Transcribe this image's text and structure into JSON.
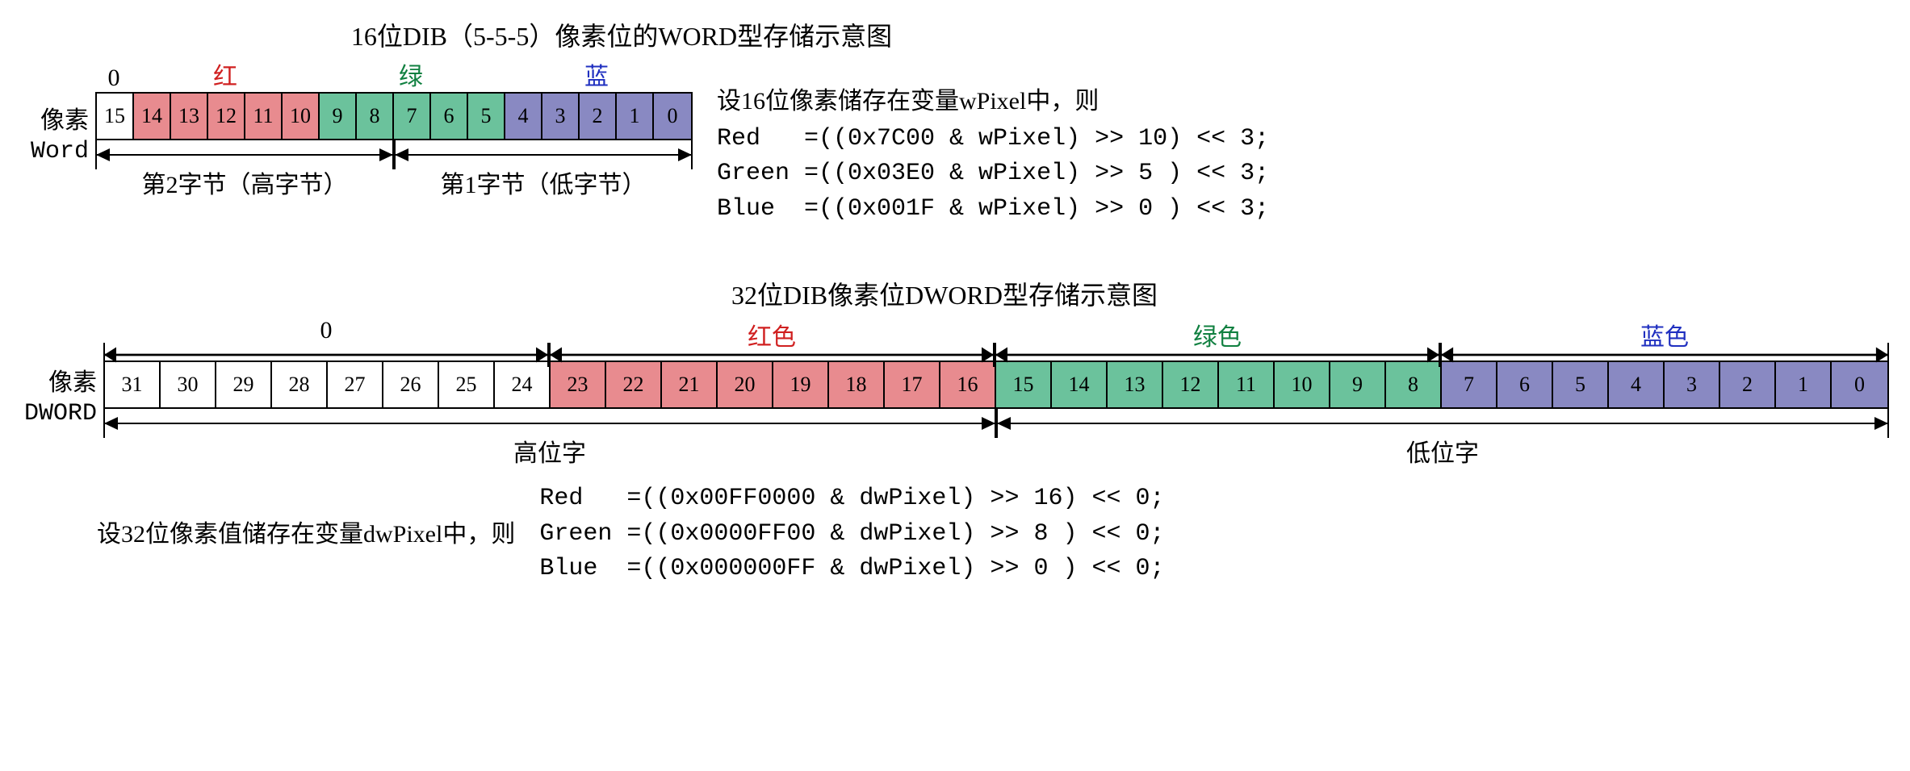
{
  "colors": {
    "red": "#e88b8f",
    "green": "#6bc29c",
    "blue": "#8989c2",
    "white": "#ffffff",
    "text_red": "#d02020",
    "text_green": "#108040",
    "text_blue": "#2030c0",
    "border": "#000000"
  },
  "fig16": {
    "title": "16位DIB（5-5-5）像素位的WORD型存储示意图",
    "row_label_l1": "像素",
    "row_label_l2": "Word",
    "channels": {
      "zero": "0",
      "red": "红",
      "green": "绿",
      "blue": "蓝"
    },
    "bits": [
      {
        "n": "15",
        "c": "white"
      },
      {
        "n": "14",
        "c": "red"
      },
      {
        "n": "13",
        "c": "red"
      },
      {
        "n": "12",
        "c": "red"
      },
      {
        "n": "11",
        "c": "red"
      },
      {
        "n": "10",
        "c": "red"
      },
      {
        "n": "9",
        "c": "green"
      },
      {
        "n": "8",
        "c": "green"
      },
      {
        "n": "7",
        "c": "green"
      },
      {
        "n": "6",
        "c": "green"
      },
      {
        "n": "5",
        "c": "green"
      },
      {
        "n": "4",
        "c": "blue"
      },
      {
        "n": "3",
        "c": "blue"
      },
      {
        "n": "2",
        "c": "blue"
      },
      {
        "n": "1",
        "c": "blue"
      },
      {
        "n": "0",
        "c": "blue"
      }
    ],
    "byte2": "第2字节（高字节）",
    "byte1": "第1字节（低字节）",
    "caption_l1": "设16位像素储存在变量wPixel中，则",
    "caption_l2": "Red   =((0x7C00 & wPixel) >> 10) << 3;",
    "caption_l3": "Green =((0x03E0 & wPixel) >> 5 ) << 3;",
    "caption_l4": "Blue  =((0x001F & wPixel) >> 0 ) << 3;"
  },
  "fig32": {
    "title": "32位DIB像素位DWORD型存储示意图",
    "row_label_l1": "像素",
    "row_label_l2": "DWORD",
    "channels": {
      "zero": "0",
      "red": "红色",
      "green": "绿色",
      "blue": "蓝色"
    },
    "bits": [
      {
        "n": "31",
        "c": "white"
      },
      {
        "n": "30",
        "c": "white"
      },
      {
        "n": "29",
        "c": "white"
      },
      {
        "n": "28",
        "c": "white"
      },
      {
        "n": "27",
        "c": "white"
      },
      {
        "n": "26",
        "c": "white"
      },
      {
        "n": "25",
        "c": "white"
      },
      {
        "n": "24",
        "c": "white"
      },
      {
        "n": "23",
        "c": "red"
      },
      {
        "n": "22",
        "c": "red"
      },
      {
        "n": "21",
        "c": "red"
      },
      {
        "n": "20",
        "c": "red"
      },
      {
        "n": "19",
        "c": "red"
      },
      {
        "n": "18",
        "c": "red"
      },
      {
        "n": "17",
        "c": "red"
      },
      {
        "n": "16",
        "c": "red"
      },
      {
        "n": "15",
        "c": "green"
      },
      {
        "n": "14",
        "c": "green"
      },
      {
        "n": "13",
        "c": "green"
      },
      {
        "n": "12",
        "c": "green"
      },
      {
        "n": "11",
        "c": "green"
      },
      {
        "n": "10",
        "c": "green"
      },
      {
        "n": "9",
        "c": "green"
      },
      {
        "n": "8",
        "c": "green"
      },
      {
        "n": "7",
        "c": "blue"
      },
      {
        "n": "6",
        "c": "blue"
      },
      {
        "n": "5",
        "c": "blue"
      },
      {
        "n": "4",
        "c": "blue"
      },
      {
        "n": "3",
        "c": "blue"
      },
      {
        "n": "2",
        "c": "blue"
      },
      {
        "n": "1",
        "c": "blue"
      },
      {
        "n": "0",
        "c": "blue"
      }
    ],
    "high_word": "高位字",
    "low_word": "低位字",
    "caption_left": "设32位像素值储存在变量dwPixel中，则",
    "caption_l1": "Red   =((0x00FF0000 & dwPixel) >> 16) << 0;",
    "caption_l2": "Green =((0x0000FF00 & dwPixel) >> 8 ) << 0;",
    "caption_l3": "Blue  =((0x000000FF & dwPixel) >> 0 ) << 0;"
  },
  "layout": {
    "bit16_width": 46,
    "bit32_width": 69
  }
}
